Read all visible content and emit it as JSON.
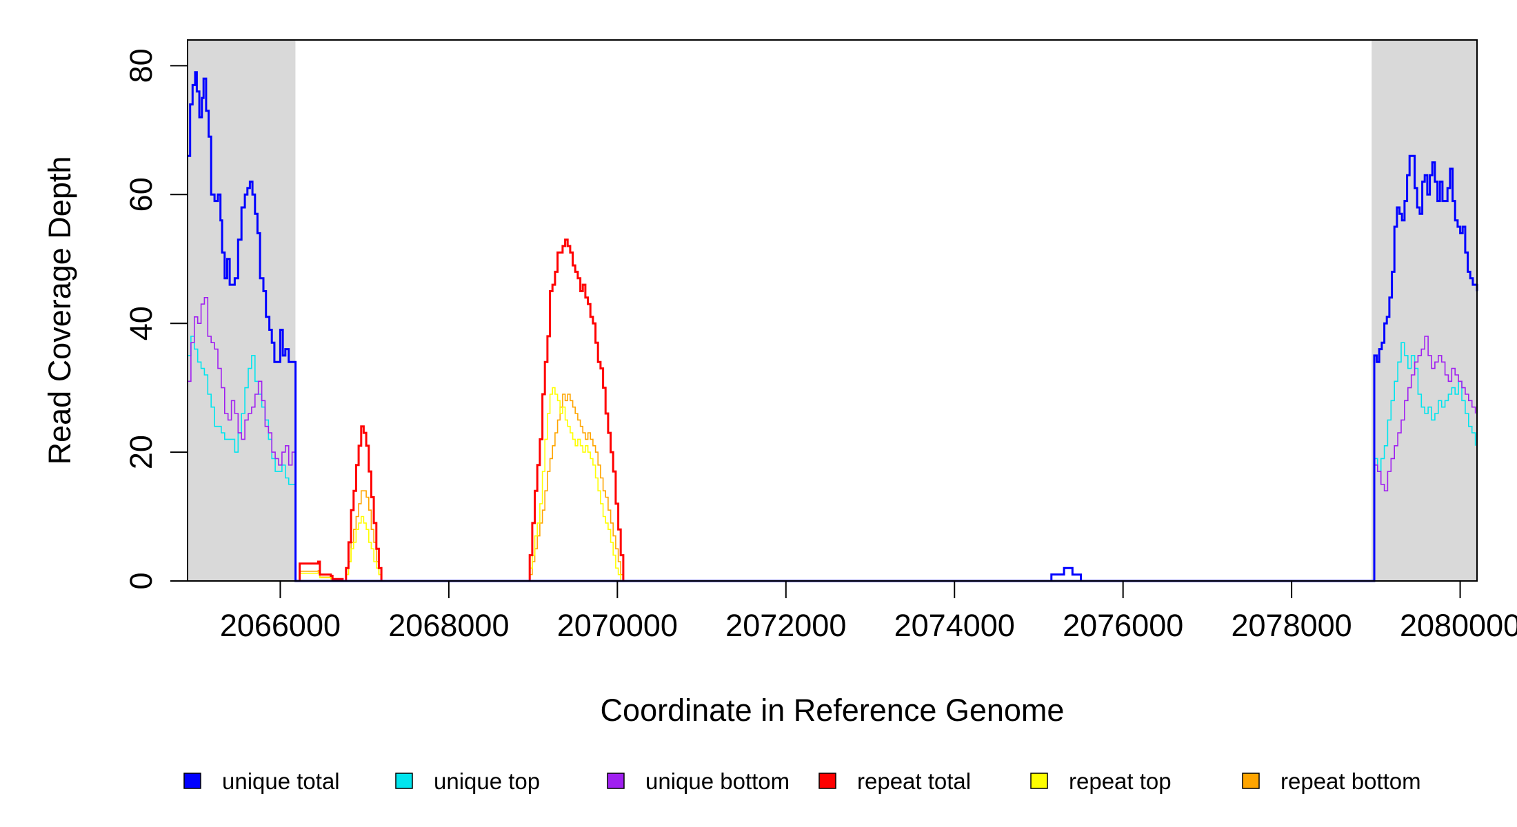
{
  "chart_data": {
    "type": "line",
    "xlabel": "Coordinate in Reference Genome",
    "ylabel": "Read Coverage Depth",
    "xlim": [
      2064900,
      2080200
    ],
    "ylim": [
      0,
      84
    ],
    "x_ticks": [
      2066000,
      2068000,
      2070000,
      2072000,
      2074000,
      2076000,
      2078000,
      2080000
    ],
    "x_tick_labels": [
      "2066000",
      "2068000",
      "2070000",
      "2072000",
      "2074000",
      "2076000",
      "2078000",
      "2080000"
    ],
    "y_ticks": [
      0,
      20,
      40,
      60,
      80
    ],
    "y_tick_labels": [
      "0",
      "20",
      "40",
      "60",
      "80"
    ],
    "shaded_regions": [
      {
        "x0": 2064900,
        "x1": 2066180,
        "color": "#d9d9d9"
      },
      {
        "x0": 2078950,
        "x1": 2080200,
        "color": "#d9d9d9"
      }
    ],
    "legend": {
      "placement": "bottom",
      "entries": [
        {
          "label": "unique total",
          "color": "#0000ff"
        },
        {
          "label": "unique top",
          "color": "#00e5ee"
        },
        {
          "label": "unique bottom",
          "color": "#a020f0"
        },
        {
          "label": "repeat total",
          "color": "#ff0000"
        },
        {
          "label": "repeat top",
          "color": "#ffff00"
        },
        {
          "label": "repeat bottom",
          "color": "#ffa500"
        }
      ]
    },
    "series": [
      {
        "name": "unique total",
        "color": "#0000ff",
        "width": 3,
        "x": [
          2064900,
          2064930,
          2064960,
          2064990,
          2065010,
          2065040,
          2065070,
          2065090,
          2065120,
          2065150,
          2065180,
          2065220,
          2065260,
          2065290,
          2065310,
          2065340,
          2065370,
          2065400,
          2065430,
          2065460,
          2065500,
          2065540,
          2065580,
          2065610,
          2065640,
          2065670,
          2065700,
          2065730,
          2065760,
          2065800,
          2065830,
          2065870,
          2065900,
          2065930,
          2065960,
          2066000,
          2066030,
          2066060,
          2066100,
          2066150,
          2066170,
          2066180,
          2066181,
          2078980,
          2078981,
          2079010,
          2079040,
          2079070,
          2079100,
          2079130,
          2079160,
          2079190,
          2079220,
          2079250,
          2079280,
          2079310,
          2079340,
          2079370,
          2079400,
          2079430,
          2079460,
          2079490,
          2079520,
          2079550,
          2079580,
          2079610,
          2079640,
          2079670,
          2079700,
          2079730,
          2079760,
          2079790,
          2079820,
          2079850,
          2079880,
          2079910,
          2079940,
          2079970,
          2080000,
          2080030,
          2080060,
          2080090,
          2080120,
          2080150,
          2080200
        ],
        "y": [
          66,
          74,
          77,
          79,
          76,
          72,
          75,
          78,
          73,
          69,
          60,
          59,
          60,
          56,
          51,
          47,
          50,
          46,
          46,
          47,
          53,
          58,
          60,
          61,
          62,
          60,
          57,
          54,
          47,
          45,
          41,
          39,
          37,
          34,
          34,
          39,
          35,
          36,
          34,
          34,
          34,
          34,
          0,
          0,
          35,
          34,
          36,
          37,
          40,
          41,
          44,
          48,
          55,
          58,
          57,
          56,
          59,
          63,
          66,
          66,
          61,
          58,
          57,
          62,
          63,
          60,
          63,
          65,
          62,
          59,
          62,
          59,
          59,
          61,
          64,
          59,
          56,
          55,
          54,
          55,
          51,
          48,
          47,
          46,
          45
        ]
      },
      {
        "name": "unique top",
        "color": "#00e5ee",
        "width": 1.6,
        "x": [
          2064900,
          2064940,
          2064980,
          2065020,
          2065060,
          2065100,
          2065140,
          2065180,
          2065220,
          2065260,
          2065300,
          2065340,
          2065380,
          2065420,
          2065460,
          2065500,
          2065540,
          2065580,
          2065620,
          2065660,
          2065700,
          2065740,
          2065780,
          2065820,
          2065860,
          2065900,
          2065940,
          2065980,
          2066020,
          2066060,
          2066100,
          2066140,
          2066180,
          2066181,
          2078980,
          2078981,
          2079020,
          2079060,
          2079100,
          2079140,
          2079180,
          2079220,
          2079260,
          2079300,
          2079340,
          2079380,
          2079420,
          2079460,
          2079500,
          2079540,
          2079580,
          2079620,
          2079660,
          2079700,
          2079740,
          2079780,
          2079820,
          2079860,
          2079900,
          2079940,
          2079980,
          2080020,
          2080060,
          2080100,
          2080140,
          2080180
        ],
        "y": [
          35,
          38,
          36,
          34,
          33,
          32,
          29,
          27,
          24,
          24,
          23,
          22,
          22,
          22,
          20,
          23,
          26,
          30,
          33,
          35,
          31,
          29,
          27,
          25,
          22,
          19,
          17,
          17,
          18,
          16,
          15,
          15,
          15,
          0,
          0,
          19,
          17,
          19,
          21,
          25,
          28,
          31,
          34,
          37,
          35,
          33,
          35,
          33,
          29,
          27,
          26,
          27,
          25,
          26,
          28,
          27,
          28,
          29,
          30,
          29,
          31,
          28,
          26,
          24,
          23,
          21
        ]
      },
      {
        "name": "unique bottom",
        "color": "#a020f0",
        "width": 1.6,
        "x": [
          2064900,
          2064940,
          2064980,
          2065020,
          2065060,
          2065100,
          2065140,
          2065180,
          2065220,
          2065260,
          2065300,
          2065340,
          2065380,
          2065420,
          2065460,
          2065500,
          2065540,
          2065580,
          2065620,
          2065660,
          2065700,
          2065740,
          2065780,
          2065820,
          2065860,
          2065900,
          2065940,
          2065980,
          2066020,
          2066060,
          2066100,
          2066140,
          2066180,
          2066181,
          2078980,
          2078981,
          2079020,
          2079060,
          2079100,
          2079140,
          2079180,
          2079220,
          2079260,
          2079300,
          2079340,
          2079380,
          2079420,
          2079460,
          2079500,
          2079540,
          2079580,
          2079620,
          2079660,
          2079700,
          2079740,
          2079780,
          2079820,
          2079860,
          2079900,
          2079940,
          2079980,
          2080020,
          2080060,
          2080100,
          2080140,
          2080180
        ],
        "y": [
          31,
          37,
          41,
          40,
          43,
          44,
          38,
          37,
          36,
          33,
          30,
          26,
          25,
          28,
          26,
          23,
          22,
          25,
          26,
          27,
          29,
          31,
          28,
          24,
          23,
          20,
          19,
          18,
          20,
          21,
          18,
          20,
          20,
          0,
          0,
          18,
          17,
          15,
          14,
          17,
          19,
          21,
          23,
          25,
          28,
          30,
          32,
          34,
          35,
          36,
          38,
          35,
          33,
          34,
          35,
          34,
          32,
          31,
          33,
          32,
          31,
          30,
          29,
          28,
          27,
          26
        ]
      },
      {
        "name": "repeat total",
        "color": "#ff0000",
        "width": 3,
        "x": [
          2066200,
          2066230,
          2066450,
          2066470,
          2066600,
          2066620,
          2066740,
          2066780,
          2066810,
          2066840,
          2066870,
          2066900,
          2066930,
          2066960,
          2066990,
          2067020,
          2067050,
          2067080,
          2067110,
          2067140,
          2067170,
          2067200,
          2067230,
          2067260,
          2067290,
          2067320,
          2068950,
          2068960,
          2068990,
          2069020,
          2069050,
          2069080,
          2069110,
          2069140,
          2069170,
          2069200,
          2069230,
          2069260,
          2069290,
          2069320,
          2069350,
          2069380,
          2069410,
          2069440,
          2069470,
          2069500,
          2069530,
          2069560,
          2069590,
          2069620,
          2069650,
          2069680,
          2069710,
          2069740,
          2069770,
          2069800,
          2069830,
          2069860,
          2069890,
          2069920,
          2069950,
          2069980,
          2070010,
          2070040,
          2070070,
          2070100,
          2070130,
          2070160,
          2070190,
          2070220,
          2070250,
          2070280,
          2070310
        ],
        "y": [
          0,
          2.7,
          3,
          1,
          0.8,
          0.3,
          0,
          2,
          6,
          11,
          14,
          18,
          21,
          24,
          23,
          21,
          17,
          13,
          9,
          5,
          2,
          0,
          0,
          0,
          0,
          0,
          0,
          4,
          9,
          14,
          18,
          22,
          29,
          34,
          38,
          45,
          46,
          48,
          51,
          51,
          52,
          53,
          52,
          51,
          49,
          48,
          47,
          45,
          46,
          44,
          43,
          41,
          40,
          37,
          34,
          33,
          30,
          26,
          23,
          20,
          17,
          12,
          8,
          4,
          0,
          0,
          0,
          0,
          0,
          0,
          0,
          0,
          0
        ]
      },
      {
        "name": "repeat top",
        "color": "#ffff00",
        "width": 1.6,
        "x": [
          2066200,
          2066230,
          2066450,
          2066470,
          2066600,
          2066620,
          2066740,
          2066780,
          2066810,
          2066840,
          2066870,
          2066900,
          2066930,
          2066960,
          2066990,
          2067020,
          2067050,
          2067080,
          2067110,
          2067140,
          2067170,
          2067200,
          2067230,
          2067260,
          2068950,
          2068960,
          2068990,
          2069020,
          2069050,
          2069080,
          2069110,
          2069140,
          2069170,
          2069200,
          2069230,
          2069260,
          2069290,
          2069320,
          2069350,
          2069380,
          2069410,
          2069440,
          2069470,
          2069500,
          2069530,
          2069560,
          2069590,
          2069620,
          2069650,
          2069680,
          2069710,
          2069740,
          2069770,
          2069800,
          2069830,
          2069860,
          2069890,
          2069920,
          2069950,
          2069980,
          2070010,
          2070040,
          2070070,
          2070100,
          2070130,
          2070160,
          2070190,
          2070220,
          2070250,
          2070280,
          2070310
        ],
        "y": [
          0,
          1.2,
          1.4,
          0.5,
          0.3,
          0.1,
          0,
          1,
          3,
          5,
          6,
          8,
          9,
          10,
          9,
          8,
          6,
          5,
          3,
          2,
          1,
          0,
          0,
          0,
          0,
          2,
          4,
          7,
          9,
          12,
          17,
          22,
          26,
          29,
          30,
          29,
          28,
          26,
          27,
          25,
          24,
          23,
          22,
          21,
          22,
          21,
          20,
          21,
          20,
          19,
          18,
          16,
          14,
          12,
          10,
          9,
          8,
          6,
          4,
          2,
          1,
          0,
          0,
          0,
          0,
          0,
          0,
          0,
          0,
          0,
          0
        ]
      },
      {
        "name": "repeat bottom",
        "color": "#ffa500",
        "width": 1.6,
        "x": [
          2066200,
          2066230,
          2066450,
          2066470,
          2066600,
          2066620,
          2066740,
          2066780,
          2066810,
          2066840,
          2066870,
          2066900,
          2066930,
          2066960,
          2066990,
          2067020,
          2067050,
          2067080,
          2067110,
          2067140,
          2067170,
          2067200,
          2067230,
          2067260,
          2068950,
          2068960,
          2068990,
          2069020,
          2069050,
          2069080,
          2069110,
          2069140,
          2069170,
          2069200,
          2069230,
          2069260,
          2069290,
          2069320,
          2069350,
          2069380,
          2069410,
          2069440,
          2069470,
          2069500,
          2069530,
          2069560,
          2069590,
          2069620,
          2069650,
          2069680,
          2069710,
          2069740,
          2069770,
          2069800,
          2069830,
          2069860,
          2069890,
          2069920,
          2069950,
          2069980,
          2070010,
          2070040,
          2070070,
          2070100,
          2070130,
          2070160,
          2070190,
          2070220,
          2070250,
          2070280,
          2070310
        ],
        "y": [
          0,
          1.5,
          1.6,
          0.6,
          0.5,
          0.2,
          0,
          1,
          3,
          6,
          8,
          10,
          12,
          14,
          14,
          13,
          11,
          8,
          6,
          3,
          1,
          0,
          0,
          0,
          0,
          1,
          3,
          5,
          7,
          9,
          11,
          14,
          17,
          19,
          21,
          23,
          25,
          27,
          29,
          28,
          29,
          28,
          27,
          26,
          25,
          24,
          23,
          22,
          23,
          22,
          21,
          20,
          18,
          16,
          14,
          13,
          11,
          9,
          7,
          5,
          3,
          1,
          0,
          0,
          0,
          0,
          0,
          0,
          0,
          0,
          0
        ]
      }
    ],
    "minor_segments": [
      {
        "series": "unique total",
        "x": [
          2075150,
          2075300,
          2075400,
          2075500
        ],
        "y": [
          1,
          2,
          1,
          0
        ]
      }
    ]
  }
}
